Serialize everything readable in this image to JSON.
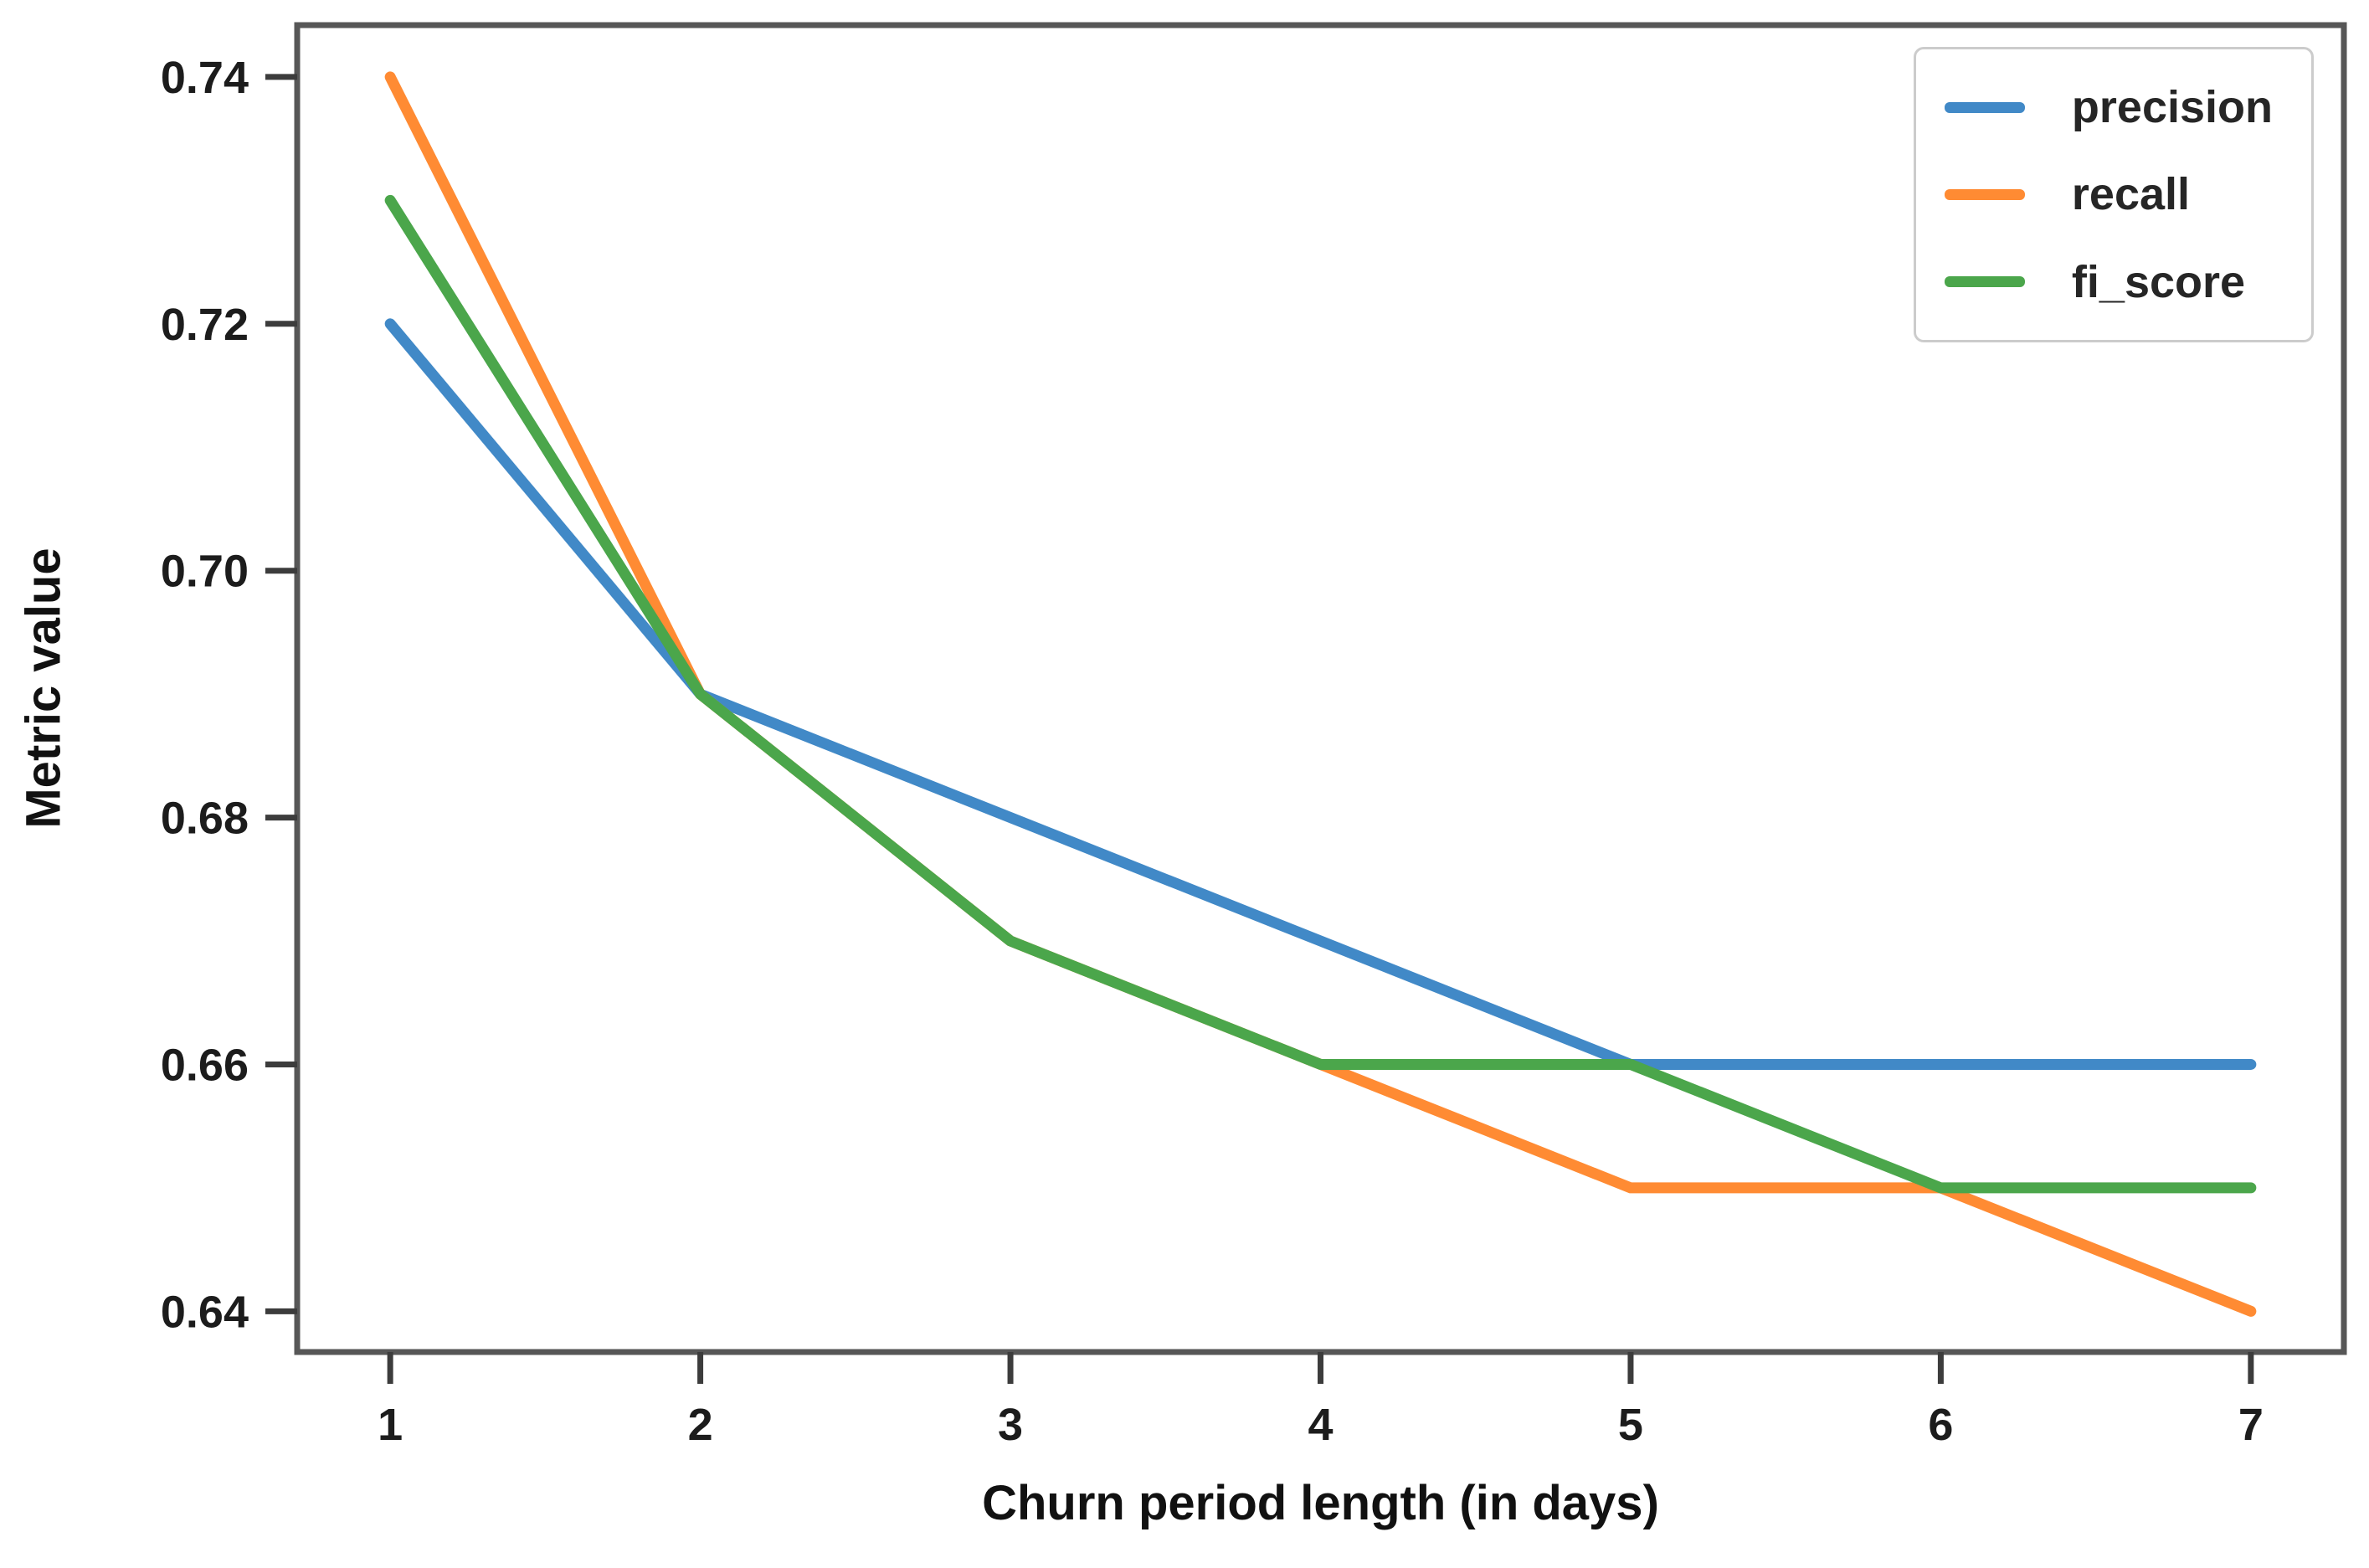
{
  "chart_data": {
    "type": "line",
    "title": "",
    "xlabel": "Churn period length (in days)",
    "ylabel": "Metric value",
    "x": [
      1,
      2,
      3,
      4,
      5,
      6,
      7
    ],
    "series": [
      {
        "name": "precision",
        "color": "#4189c7",
        "values": [
          0.72,
          0.69,
          0.68,
          0.67,
          0.66,
          0.66,
          0.66
        ]
      },
      {
        "name": "recall",
        "color": "#ff8b33",
        "values": [
          0.74,
          0.69,
          0.67,
          0.66,
          0.65,
          0.65,
          0.64
        ]
      },
      {
        "name": "fi_score",
        "color": "#4ba64b",
        "values": [
          0.73,
          0.69,
          0.67,
          0.66,
          0.66,
          0.65,
          0.65
        ]
      }
    ],
    "x_ticks": [
      1,
      2,
      3,
      4,
      5,
      6,
      7
    ],
    "x_tick_labels": [
      "1",
      "2",
      "3",
      "4",
      "5",
      "6",
      "7"
    ],
    "y_ticks": [
      0.64,
      0.66,
      0.68,
      0.7,
      0.72,
      0.74
    ],
    "y_tick_labels": [
      "0.64",
      "0.66",
      "0.68",
      "0.70",
      "0.72",
      "0.74"
    ],
    "xlim": [
      0.7,
      7.3
    ],
    "ylim": [
      0.6367,
      0.7442
    ],
    "grid": false,
    "legend": {
      "position": "upper right",
      "entries": [
        "precision",
        "recall",
        "fi_score"
      ]
    }
  }
}
